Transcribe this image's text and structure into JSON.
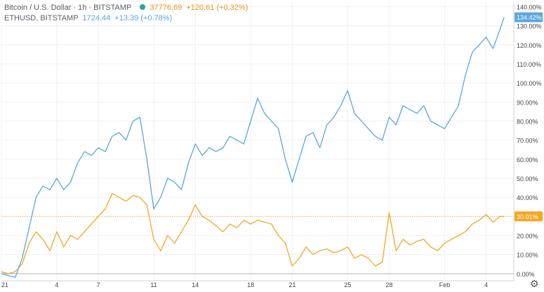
{
  "legend": {
    "btc_title": "Bitcoin / U.S. Dollar · 1h · BITSTAMP",
    "btc_price": "37776.69",
    "btc_change": "+120.61 (+0.32%)",
    "eth_title": "ETHUSD, BITSTAMP",
    "eth_price": "1724.44",
    "eth_change": "+13.39 (+0.78%)"
  },
  "colors": {
    "btc": "#f5a623",
    "eth": "#5aa6e0",
    "status_dot": "#26a69a",
    "grid": "#eef0f3",
    "axis_text": "#444444"
  },
  "icons": {
    "settings": "gear-icon",
    "status": "dot-icon"
  },
  "chart_data": {
    "type": "line",
    "y_axis_unit": "%",
    "ylim": [
      -3,
      142
    ],
    "y_ticks": [
      "140.00%",
      "130.00%",
      "120.00%",
      "110.00%",
      "100.00%",
      "90.00%",
      "80.00%",
      "70.00%",
      "60.00%",
      "50.00%",
      "40.00%",
      "30.00%",
      "20.00%",
      "10.00%",
      "0.00%"
    ],
    "y_tick_values": [
      140,
      130,
      120,
      110,
      100,
      90,
      80,
      70,
      60,
      50,
      40,
      30,
      20,
      10,
      0
    ],
    "x_ticks": [
      "21",
      "4",
      "7",
      "11",
      "14",
      "18",
      "21",
      "25",
      "28",
      "Feb",
      "4"
    ],
    "x_tick_values": [
      0,
      4,
      7,
      11,
      14,
      18,
      21,
      25,
      28,
      32,
      35
    ],
    "xlim": [
      0,
      37
    ],
    "last_value_labels": {
      "eth": "134.42%",
      "btc": "30.01%"
    },
    "series": [
      {
        "key": "btc",
        "x": [
          0,
          0.5,
          1,
          1.5,
          2,
          2.5,
          3,
          3.5,
          4,
          4.5,
          5,
          5.5,
          6,
          6.5,
          7,
          7.5,
          8,
          8.5,
          9,
          9.5,
          10,
          10.5,
          11,
          11.5,
          12,
          12.5,
          13,
          13.5,
          14,
          14.5,
          15,
          15.5,
          16,
          16.5,
          17,
          17.5,
          18,
          18.5,
          19,
          19.5,
          20,
          20.5,
          21,
          21.5,
          22,
          22.5,
          23,
          23.5,
          24,
          24.5,
          25,
          25.5,
          26,
          26.5,
          27,
          27.5,
          28,
          28.5,
          29,
          29.5,
          30,
          30.5,
          31,
          31.5,
          32,
          32.5,
          33,
          33.5,
          34,
          34.5,
          35,
          35.5,
          36,
          36.3
        ],
        "values": [
          1,
          0,
          1,
          5,
          16,
          22,
          18,
          12,
          22,
          14,
          20,
          18,
          22,
          26,
          30,
          34,
          42,
          40,
          38,
          41,
          40,
          36,
          18,
          12,
          20,
          16,
          22,
          28,
          36,
          30,
          28,
          25,
          22,
          26,
          24,
          28,
          26,
          28,
          27,
          26,
          20,
          16,
          4,
          8,
          14,
          10,
          12,
          13,
          11,
          12,
          14,
          8,
          10,
          8,
          4,
          6,
          32,
          12,
          18,
          15,
          17,
          18,
          14,
          12,
          16,
          18,
          20,
          22,
          26,
          28,
          31,
          27,
          30,
          30.01
        ]
      },
      {
        "key": "eth",
        "x": [
          0,
          0.5,
          1,
          1.5,
          2,
          2.5,
          3,
          3.5,
          4,
          4.5,
          5,
          5.5,
          6,
          6.5,
          7,
          7.5,
          8,
          8.5,
          9,
          9.5,
          10,
          10.5,
          11,
          11.5,
          12,
          12.5,
          13,
          13.5,
          14,
          14.5,
          15,
          15.5,
          16,
          16.5,
          17,
          17.5,
          18,
          18.5,
          19,
          19.5,
          20,
          20.5,
          21,
          21.5,
          22,
          22.5,
          23,
          23.5,
          24,
          24.5,
          25,
          25.5,
          26,
          26.5,
          27,
          27.5,
          28,
          28.5,
          29,
          29.5,
          30,
          30.5,
          31,
          31.5,
          32,
          32.5,
          33,
          33.5,
          34,
          34.5,
          35,
          35.5,
          36,
          36.3
        ],
        "values": [
          0,
          -1,
          -2,
          8,
          24,
          40,
          46,
          44,
          50,
          44,
          48,
          58,
          64,
          62,
          66,
          64,
          72,
          74,
          70,
          80,
          82,
          60,
          34,
          40,
          50,
          48,
          44,
          58,
          68,
          62,
          66,
          64,
          66,
          72,
          70,
          68,
          80,
          92,
          84,
          80,
          76,
          60,
          48,
          60,
          72,
          74,
          66,
          78,
          82,
          88,
          96,
          84,
          80,
          76,
          72,
          70,
          82,
          78,
          88,
          86,
          84,
          88,
          80,
          78,
          76,
          82,
          88,
          104,
          116,
          120,
          124,
          118,
          128,
          134.42
        ]
      }
    ]
  }
}
